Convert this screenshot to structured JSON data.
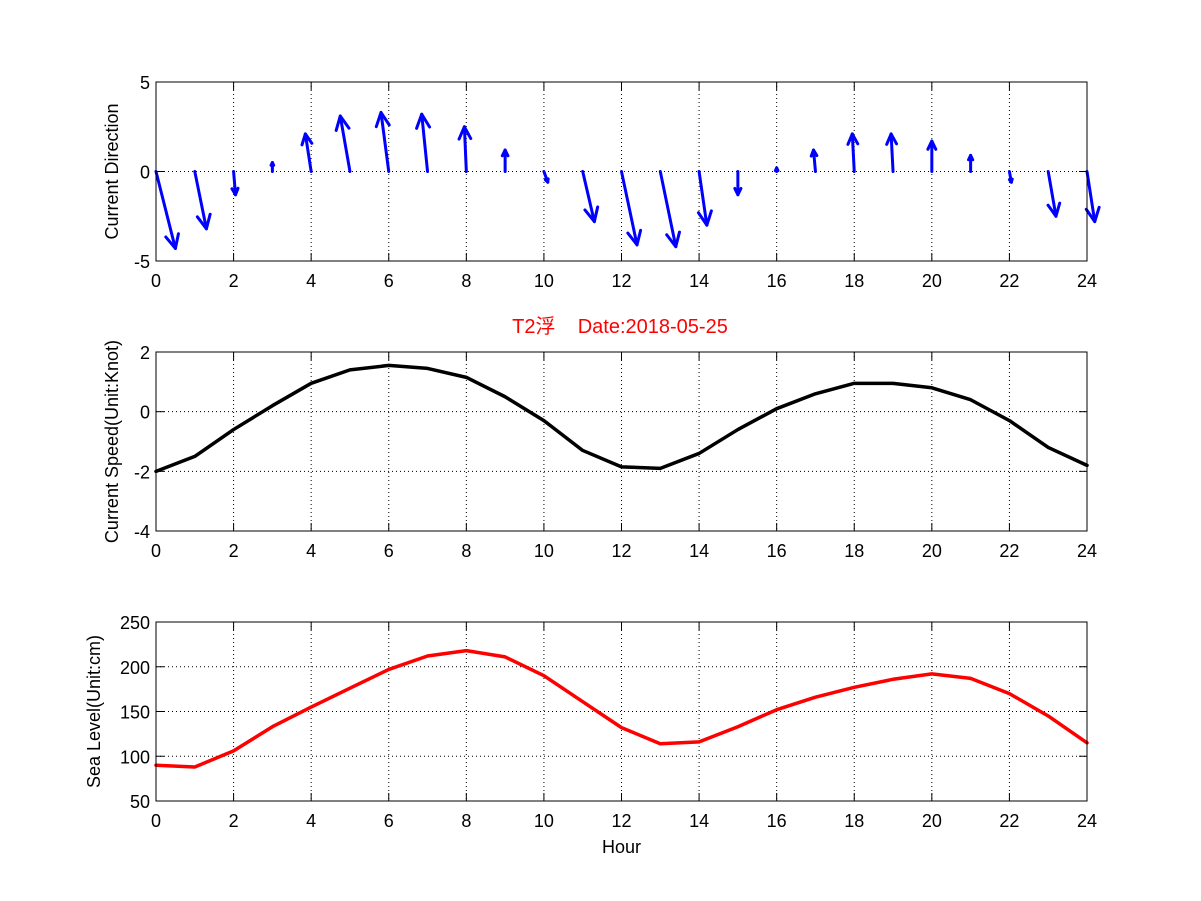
{
  "title": "T2浮    Date:2018-05-25",
  "colors": {
    "title": "#ff0000",
    "direction": "#0000ff",
    "speed": "#000000",
    "level": "#ff0000",
    "axis": "#000000",
    "grid": "#000000",
    "background": "#ffffff"
  },
  "chart_data": [
    {
      "type": "quiver",
      "ylabel": "Current Direction",
      "xlabel": "",
      "xlim": [
        0,
        24
      ],
      "ylim": [
        -5,
        5
      ],
      "xticks": [
        0,
        2,
        4,
        6,
        8,
        10,
        12,
        14,
        16,
        18,
        20,
        22,
        24
      ],
      "yticks": [
        -5,
        0,
        5
      ],
      "grid": true,
      "vectors": [
        {
          "x": 0,
          "u": 0.5,
          "v": -4.3
        },
        {
          "x": 1,
          "u": 0.3,
          "v": -3.2
        },
        {
          "x": 2,
          "u": 0.05,
          "v": -1.3
        },
        {
          "x": 3,
          "u": 0.0,
          "v": 0.5
        },
        {
          "x": 4,
          "u": -0.15,
          "v": 2.1
        },
        {
          "x": 5,
          "u": -0.25,
          "v": 3.1
        },
        {
          "x": 6,
          "u": -0.2,
          "v": 3.3
        },
        {
          "x": 7,
          "u": -0.15,
          "v": 3.2
        },
        {
          "x": 8,
          "u": -0.05,
          "v": 2.5
        },
        {
          "x": 9,
          "u": 0.0,
          "v": 1.2
        },
        {
          "x": 10,
          "u": 0.1,
          "v": -0.6
        },
        {
          "x": 11,
          "u": 0.3,
          "v": -2.8
        },
        {
          "x": 12,
          "u": 0.4,
          "v": -4.1
        },
        {
          "x": 13,
          "u": 0.4,
          "v": -4.2
        },
        {
          "x": 14,
          "u": 0.2,
          "v": -3.0
        },
        {
          "x": 15,
          "u": 0.0,
          "v": -1.3
        },
        {
          "x": 16,
          "u": 0.0,
          "v": 0.2
        },
        {
          "x": 17,
          "u": -0.05,
          "v": 1.2
        },
        {
          "x": 18,
          "u": -0.05,
          "v": 2.1
        },
        {
          "x": 19,
          "u": -0.05,
          "v": 2.1
        },
        {
          "x": 20,
          "u": 0.0,
          "v": 1.7
        },
        {
          "x": 21,
          "u": 0.0,
          "v": 0.9
        },
        {
          "x": 22,
          "u": 0.05,
          "v": -0.6
        },
        {
          "x": 23,
          "u": 0.2,
          "v": -2.5
        },
        {
          "x": 24,
          "u": 0.2,
          "v": -2.8
        }
      ]
    },
    {
      "type": "line",
      "ylabel": "Current Speed(Unit:Knot)",
      "xlabel": "",
      "xlim": [
        0,
        24
      ],
      "ylim": [
        -4,
        2
      ],
      "xticks": [
        0,
        2,
        4,
        6,
        8,
        10,
        12,
        14,
        16,
        18,
        20,
        22,
        24
      ],
      "yticks": [
        -4,
        -2,
        0,
        2
      ],
      "grid": true,
      "x": [
        0,
        1,
        2,
        3,
        4,
        5,
        6,
        7,
        8,
        9,
        10,
        11,
        12,
        13,
        14,
        15,
        16,
        17,
        18,
        19,
        20,
        21,
        22,
        23,
        24
      ],
      "y": [
        -2.0,
        -1.5,
        -0.6,
        0.2,
        0.95,
        1.4,
        1.55,
        1.45,
        1.15,
        0.5,
        -0.3,
        -1.3,
        -1.85,
        -1.9,
        -1.4,
        -0.6,
        0.1,
        0.6,
        0.95,
        0.95,
        0.8,
        0.4,
        -0.3,
        -1.2,
        -1.8
      ]
    },
    {
      "type": "line",
      "ylabel": "Sea Level(Unit:cm)",
      "xlabel": "Hour",
      "xlim": [
        0,
        24
      ],
      "ylim": [
        50,
        250
      ],
      "xticks": [
        0,
        2,
        4,
        6,
        8,
        10,
        12,
        14,
        16,
        18,
        20,
        22,
        24
      ],
      "yticks": [
        50,
        100,
        150,
        200,
        250
      ],
      "grid": true,
      "x": [
        0,
        1,
        2,
        3,
        4,
        5,
        6,
        7,
        8,
        9,
        10,
        11,
        12,
        13,
        14,
        15,
        16,
        17,
        18,
        19,
        20,
        21,
        22,
        23,
        24
      ],
      "y": [
        90,
        88,
        106,
        133,
        155,
        176,
        197,
        212,
        218,
        211,
        190,
        161,
        132,
        114,
        116,
        133,
        152,
        166,
        177,
        186,
        192,
        187,
        170,
        145,
        115
      ]
    }
  ]
}
